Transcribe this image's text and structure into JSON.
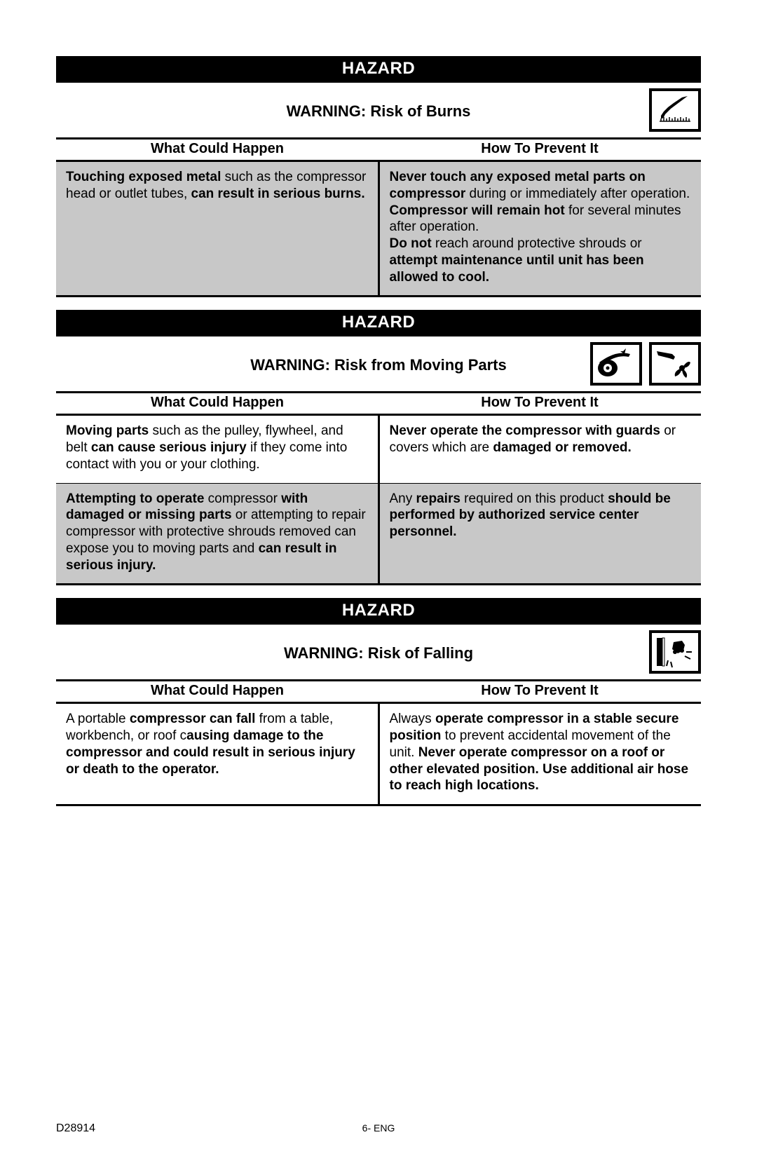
{
  "global": {
    "hazard_label": "HAZARD",
    "col_happen": "What Could Happen",
    "col_prevent": "How To Prevent It",
    "doc_no": "D28914",
    "page_no": "6- ENG",
    "colors": {
      "hazard_bar_bg": "#000000",
      "hazard_bar_fg": "#ffffff",
      "shaded_row_bg": "#c8c8c8",
      "border": "#000000",
      "page_bg": "#ffffff",
      "text": "#000000"
    },
    "typography": {
      "font_family": "Arial, Helvetica, sans-serif",
      "hazard_bar_size_pt": 18,
      "warning_title_size_pt": 16,
      "header_size_pt": 15,
      "body_size_pt": 14
    }
  },
  "sections": [
    {
      "warning_title": "WARNING: Risk of Burns",
      "icons": [
        "hand-heat"
      ],
      "rows": [
        {
          "shaded": true,
          "happen_html": "<b>Touching exposed metal</b> such as the compressor head or outlet tubes, <b>can result in serious burns.</b>",
          "prevent_html": "<b>Never touch any exposed metal parts on compressor</b> during or immediately after operation. <b>Compressor will remain hot</b> for several minutes after operation.<br><b>Do not</b> reach around protective shrouds or <b>attempt maintenance until unit has been allowed to cool.</b>"
        }
      ]
    },
    {
      "warning_title": "WARNING: Risk from Moving Parts",
      "icons": [
        "belt-pulley",
        "hand-fan"
      ],
      "rows": [
        {
          "shaded": false,
          "happen_html": "<b>Moving parts</b> such as the pulley, flywheel, and belt <b>can cause serious injury</b> if they come into contact with you or your clothing.",
          "prevent_html": "<b>Never operate the compressor with guards</b> or covers which are <b>damaged or removed.</b>"
        },
        {
          "shaded": true,
          "happen_html": "<b>Attempting to operate</b> compressor <b>with damaged or missing parts</b> or attempting to repair compressor with protective shrouds removed can expose you to moving parts and <b>can result in serious injury.</b>",
          "prevent_html": "Any <b>repairs</b> required on this product <b>should be performed by authorized service center personnel.</b>"
        }
      ]
    },
    {
      "warning_title": "WARNING: Risk of Falling",
      "icons": [
        "falling-compressor"
      ],
      "rows": [
        {
          "shaded": false,
          "happen_html": "A portable <b>compressor can fall</b> from a table, workbench, or roof c<b>ausing damage to the compressor and could result in serious injury or death to the operator.</b>",
          "prevent_html": "Always <b>operate compressor in a stable secure position</b> to prevent accidental movement of the unit. <b>Never operate compressor on a roof or other elevated position. Use additional air hose to reach high locations.</b>"
        }
      ]
    }
  ]
}
